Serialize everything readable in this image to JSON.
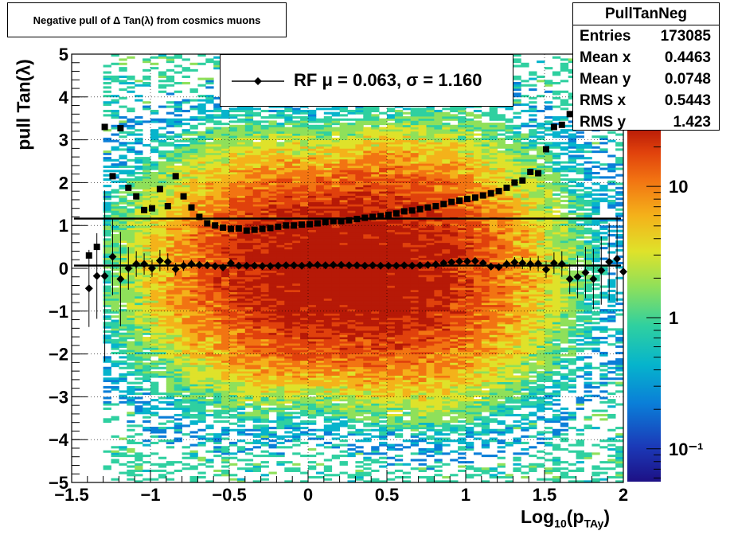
{
  "title": "Negative pull of Δ Tan(λ) from cosmics muons",
  "stats": {
    "name": "PullTanNeg",
    "rows": [
      {
        "label": "Entries",
        "value": "173085"
      },
      {
        "label": "Mean x",
        "value": "0.4463"
      },
      {
        "label": "Mean y",
        "value": "0.0748"
      },
      {
        "label": "RMS x",
        "value": "0.5443"
      },
      {
        "label": "RMS y",
        "value": "1.423"
      }
    ]
  },
  "legend": {
    "text": "RF μ =  0.063, σ =   1.160",
    "marker": "diamond"
  },
  "colors": {
    "sigma_marker": "#000000",
    "mean_marker": "#000000",
    "palette": [
      "#1d1085",
      "#1b3ab8",
      "#0a7ed8",
      "#06b4cc",
      "#2fd0a0",
      "#8fe05a",
      "#dfe22a",
      "#f4b21a",
      "#f27412",
      "#e0410c",
      "#b61907"
    ]
  },
  "chart_data": {
    "type": "heatmap",
    "xlabel": "Log10(pTAy)",
    "ylabel": "pull Tan(λ)",
    "xlim": [
      -1.5,
      2
    ],
    "ylim": [
      -5,
      5
    ],
    "x_ticks": [
      "−1.5",
      "−1",
      "−0.5",
      "0",
      "0.5",
      "1",
      "1.5",
      "2"
    ],
    "y_ticks": [
      "−5",
      "−4",
      "−3",
      "−2",
      "−1",
      "0",
      "1",
      "2",
      "3",
      "4",
      "5"
    ],
    "z_scale": "log",
    "z_ticks": [
      "10⁻¹",
      "1",
      "10"
    ],
    "grid": true,
    "density": {
      "x_peak": 0.25,
      "x_sigma": 0.55,
      "y_sigma": 1.2,
      "x_range_populated": [
        -1.3,
        2.0
      ]
    },
    "series": [
      {
        "kind": "sigma",
        "marker": "square",
        "x": [
          -1.39,
          -1.34,
          -1.29,
          -1.24,
          -1.19,
          -1.14,
          -1.09,
          -1.04,
          -0.99,
          -0.94,
          -0.89,
          -0.84,
          -0.79,
          -0.74,
          -0.69,
          -0.64,
          -0.59,
          -0.54,
          -0.49,
          -0.44,
          -0.39,
          -0.34,
          -0.29,
          -0.24,
          -0.19,
          -0.14,
          -0.09,
          -0.04,
          0.01,
          0.06,
          0.11,
          0.16,
          0.21,
          0.26,
          0.31,
          0.36,
          0.41,
          0.46,
          0.51,
          0.56,
          0.61,
          0.66,
          0.71,
          0.76,
          0.81,
          0.86,
          0.91,
          0.96,
          1.01,
          1.06,
          1.11,
          1.16,
          1.21,
          1.26,
          1.31,
          1.36,
          1.41,
          1.46,
          1.51,
          1.56,
          1.61,
          1.66,
          1.71
        ],
        "y": [
          0.3,
          0.5,
          3.3,
          2.15,
          3.27,
          1.88,
          1.68,
          1.36,
          1.4,
          1.85,
          1.45,
          2.15,
          1.68,
          1.42,
          1.2,
          1.05,
          1.0,
          0.95,
          0.92,
          0.93,
          0.88,
          0.9,
          0.92,
          0.94,
          0.97,
          1.0,
          1.0,
          1.02,
          1.03,
          1.05,
          1.08,
          1.1,
          1.1,
          1.12,
          1.15,
          1.18,
          1.2,
          1.22,
          1.25,
          1.28,
          1.33,
          1.35,
          1.38,
          1.42,
          1.45,
          1.5,
          1.55,
          1.58,
          1.62,
          1.65,
          1.7,
          1.75,
          1.8,
          1.88,
          2.0,
          2.05,
          2.25,
          2.22,
          2.78,
          3.3,
          3.35,
          3.6,
          3.55
        ]
      },
      {
        "kind": "mean",
        "marker": "diamond",
        "x": [
          -1.39,
          -1.34,
          -1.29,
          -1.24,
          -1.19,
          -1.14,
          -1.09,
          -1.04,
          -0.99,
          -0.94,
          -0.89,
          -0.84,
          -0.79,
          -0.74,
          -0.69,
          -0.64,
          -0.59,
          -0.54,
          -0.49,
          -0.44,
          -0.39,
          -0.34,
          -0.29,
          -0.24,
          -0.19,
          -0.14,
          -0.09,
          -0.04,
          0.01,
          0.06,
          0.11,
          0.16,
          0.21,
          0.26,
          0.31,
          0.36,
          0.41,
          0.46,
          0.51,
          0.56,
          0.61,
          0.66,
          0.71,
          0.76,
          0.81,
          0.86,
          0.91,
          0.96,
          1.01,
          1.06,
          1.11,
          1.16,
          1.21,
          1.26,
          1.31,
          1.36,
          1.41,
          1.46,
          1.51,
          1.56,
          1.61,
          1.66,
          1.71,
          1.76,
          1.81,
          1.86,
          1.91,
          1.96,
          2.0
        ],
        "y": [
          -0.47,
          -0.18,
          -0.18,
          0.27,
          -0.25,
          0.0,
          0.1,
          0.1,
          0.0,
          0.18,
          0.15,
          -0.02,
          0.06,
          0.1,
          0.08,
          0.07,
          0.05,
          0.02,
          0.12,
          0.06,
          0.06,
          0.06,
          0.05,
          0.05,
          0.06,
          0.07,
          0.07,
          0.06,
          0.08,
          0.08,
          0.07,
          0.08,
          0.08,
          0.07,
          0.07,
          0.06,
          0.07,
          0.06,
          0.06,
          0.06,
          0.07,
          0.06,
          0.07,
          0.08,
          0.09,
          0.12,
          0.14,
          0.16,
          0.16,
          0.17,
          0.12,
          0.04,
          0.03,
          0.1,
          0.14,
          0.12,
          0.1,
          0.11,
          -0.03,
          0.12,
          0.1,
          -0.25,
          -0.2,
          -0.1,
          -0.25,
          -0.05,
          0.15,
          0.22,
          -0.08
        ],
        "err": [
          0.9,
          1.0,
          2.0,
          0.9,
          1.1,
          0.5,
          0.3,
          0.25,
          0.2,
          0.25,
          0.2,
          0.15,
          0.12,
          0.1,
          0.08,
          0.06,
          0.05,
          0.04,
          0.04,
          0.03,
          0.03,
          0.03,
          0.03,
          0.03,
          0.03,
          0.03,
          0.03,
          0.03,
          0.03,
          0.03,
          0.03,
          0.03,
          0.03,
          0.03,
          0.03,
          0.03,
          0.03,
          0.03,
          0.03,
          0.03,
          0.03,
          0.03,
          0.03,
          0.03,
          0.03,
          0.04,
          0.04,
          0.04,
          0.05,
          0.05,
          0.06,
          0.07,
          0.08,
          0.1,
          0.12,
          0.14,
          0.15,
          0.18,
          0.2,
          0.25,
          0.3,
          0.35,
          0.5,
          0.6,
          0.7,
          0.8,
          0.9,
          1.0,
          1.2
        ]
      }
    ],
    "fit_lines": [
      {
        "name": "sigma",
        "y": 1.16
      },
      {
        "name": "mu",
        "y": 0.063
      }
    ]
  }
}
